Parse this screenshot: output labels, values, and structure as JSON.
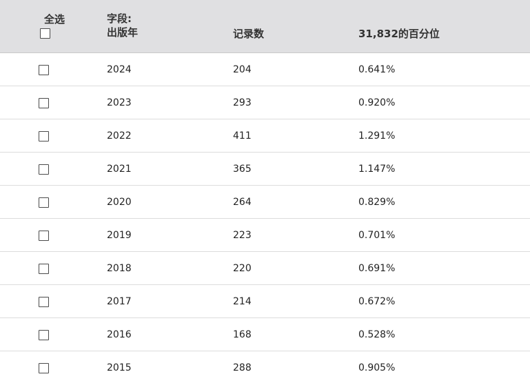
{
  "header": {
    "select_all": "全选",
    "field_prefix": "字段:",
    "field_name": "出版年",
    "count_label": "记录数",
    "percent_label": "31,832的百分位"
  },
  "rows": [
    {
      "year": "2024",
      "count": "204",
      "percent": "0.641%"
    },
    {
      "year": "2023",
      "count": "293",
      "percent": "0.920%"
    },
    {
      "year": "2022",
      "count": "411",
      "percent": "1.291%"
    },
    {
      "year": "2021",
      "count": "365",
      "percent": "1.147%"
    },
    {
      "year": "2020",
      "count": "264",
      "percent": "0.829%"
    },
    {
      "year": "2019",
      "count": "223",
      "percent": "0.701%"
    },
    {
      "year": "2018",
      "count": "220",
      "percent": "0.691%"
    },
    {
      "year": "2017",
      "count": "214",
      "percent": "0.672%"
    },
    {
      "year": "2016",
      "count": "168",
      "percent": "0.528%"
    },
    {
      "year": "2015",
      "count": "288",
      "percent": "0.905%"
    }
  ],
  "colors": {
    "header_bg": "#e0e0e2",
    "row_divider": "#dcdcdc",
    "checkbox_border": "#4a4a4a"
  }
}
